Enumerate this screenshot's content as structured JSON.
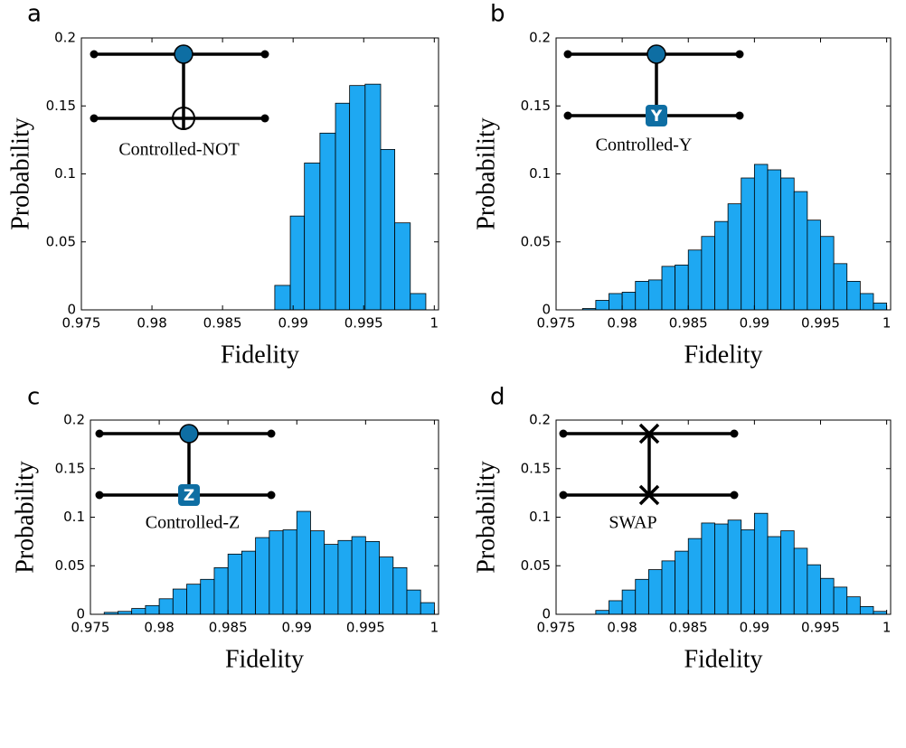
{
  "chart_data": [
    {
      "type": "histogram",
      "panel": "a",
      "title": "Controlled-NOT",
      "xlabel": "Fidelity",
      "ylabel": "Probability",
      "bins": [
        0.9887,
        0.9898,
        0.9908,
        0.9919,
        0.993,
        0.994,
        0.9951,
        0.9962,
        0.9972,
        0.9983,
        0.9994
      ],
      "values": [
        0.018,
        0.069,
        0.108,
        0.13,
        0.152,
        0.165,
        0.166,
        0.118,
        0.064,
        0.012
      ],
      "color": "#1ea8f2",
      "xlim": [
        0.975,
        1.0003
      ],
      "ylim": [
        0,
        0.2
      ],
      "xticks": [
        0.975,
        0.98,
        0.985,
        0.99,
        0.995,
        1
      ],
      "yticks": [
        0,
        0.05,
        0.1,
        0.15,
        0.2
      ]
    },
    {
      "type": "histogram",
      "panel": "b",
      "title": "Controlled-Y",
      "gate_symbol": "Y",
      "xlabel": "Fidelity",
      "ylabel": "Probability",
      "bins": [
        0.977,
        0.978,
        0.979,
        0.98,
        0.981,
        0.982,
        0.983,
        0.984,
        0.985,
        0.986,
        0.987,
        0.988,
        0.989,
        0.99,
        0.991,
        0.992,
        0.993,
        0.994,
        0.995,
        0.996,
        0.997,
        0.998,
        0.999,
        1.0
      ],
      "values": [
        0.001,
        0.007,
        0.012,
        0.013,
        0.021,
        0.022,
        0.032,
        0.033,
        0.044,
        0.054,
        0.065,
        0.078,
        0.097,
        0.107,
        0.103,
        0.097,
        0.087,
        0.066,
        0.054,
        0.034,
        0.021,
        0.012,
        0.005
      ],
      "color": "#1ea8f2",
      "xlim": [
        0.975,
        1.0003
      ],
      "ylim": [
        0,
        0.2
      ],
      "xticks": [
        0.975,
        0.98,
        0.985,
        0.99,
        0.995,
        1
      ],
      "yticks": [
        0,
        0.05,
        0.1,
        0.15,
        0.2
      ]
    },
    {
      "type": "histogram",
      "panel": "c",
      "title": "Controlled-Z",
      "gate_symbol": "Z",
      "xlabel": "Fidelity",
      "ylabel": "Probability",
      "bins": [
        0.976,
        0.977,
        0.978,
        0.979,
        0.98,
        0.981,
        0.982,
        0.983,
        0.984,
        0.985,
        0.986,
        0.987,
        0.988,
        0.989,
        0.99,
        0.991,
        0.992,
        0.993,
        0.994,
        0.995,
        0.996,
        0.997,
        0.998,
        0.999,
        1.0
      ],
      "values": [
        0.002,
        0.003,
        0.006,
        0.009,
        0.016,
        0.026,
        0.031,
        0.036,
        0.048,
        0.062,
        0.065,
        0.079,
        0.086,
        0.087,
        0.106,
        0.086,
        0.072,
        0.076,
        0.08,
        0.075,
        0.059,
        0.048,
        0.025,
        0.012
      ],
      "color": "#1ea8f2",
      "xlim": [
        0.975,
        1.0003
      ],
      "ylim": [
        0,
        0.2
      ],
      "xticks": [
        0.975,
        0.98,
        0.985,
        0.99,
        0.995,
        1
      ],
      "yticks": [
        0,
        0.05,
        0.1,
        0.15,
        0.2
      ]
    },
    {
      "type": "histogram",
      "panel": "d",
      "title": "SWAP",
      "xlabel": "Fidelity",
      "ylabel": "Probability",
      "bins": [
        0.978,
        0.979,
        0.98,
        0.981,
        0.982,
        0.983,
        0.984,
        0.985,
        0.986,
        0.987,
        0.988,
        0.989,
        0.99,
        0.991,
        0.992,
        0.993,
        0.994,
        0.995,
        0.996,
        0.997,
        0.998,
        0.999,
        1.0
      ],
      "values": [
        0.004,
        0.014,
        0.025,
        0.036,
        0.046,
        0.055,
        0.065,
        0.078,
        0.094,
        0.093,
        0.097,
        0.087,
        0.104,
        0.08,
        0.086,
        0.068,
        0.051,
        0.037,
        0.028,
        0.018,
        0.008,
        0.003
      ],
      "color": "#1ea8f2",
      "xlim": [
        0.975,
        1.0003
      ],
      "ylim": [
        0,
        0.2
      ],
      "xticks": [
        0.975,
        0.98,
        0.985,
        0.99,
        0.995,
        1
      ],
      "yticks": [
        0,
        0.05,
        0.1,
        0.15,
        0.2
      ]
    }
  ]
}
